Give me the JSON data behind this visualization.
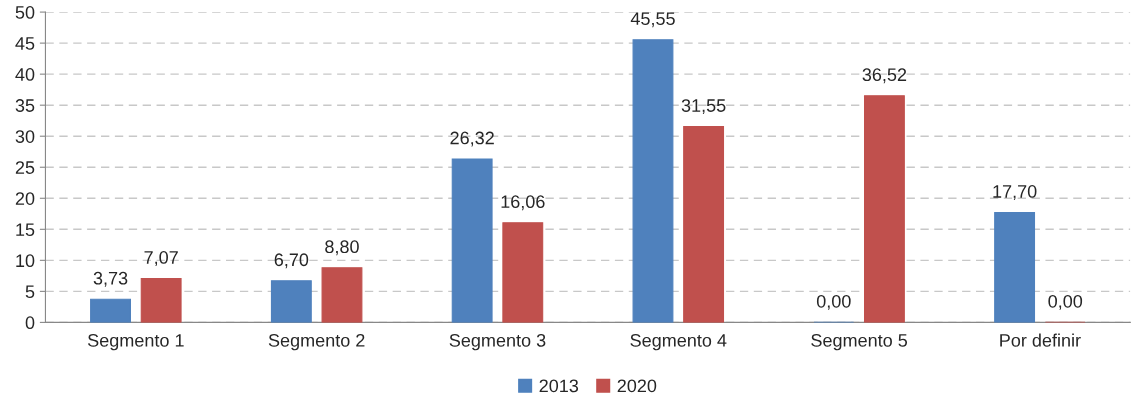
{
  "chart_data": {
    "type": "bar",
    "categories": [
      "Segmento 1",
      "Segmento 2",
      "Segmento 3",
      "Segmento 4",
      "Segmento 5",
      "Por definir"
    ],
    "series": [
      {
        "name": "2013",
        "color": "#4f81bd",
        "values": [
          3.73,
          6.7,
          26.32,
          45.55,
          0.0,
          17.7
        ],
        "value_labels": [
          "3,73",
          "6,70",
          "26,32",
          "45,55",
          "0,00",
          "17,70"
        ]
      },
      {
        "name": "2020",
        "color": "#c0504d",
        "values": [
          7.07,
          8.8,
          16.06,
          31.55,
          36.52,
          0.0
        ],
        "value_labels": [
          "7,07",
          "8,80",
          "16,06",
          "31,55",
          "36,52",
          "0,00"
        ]
      }
    ],
    "ylim": [
      0,
      50
    ],
    "yticks": [
      0,
      5,
      10,
      15,
      20,
      25,
      30,
      35,
      40,
      45,
      50
    ],
    "grid": "y",
    "legend": "bottom"
  }
}
